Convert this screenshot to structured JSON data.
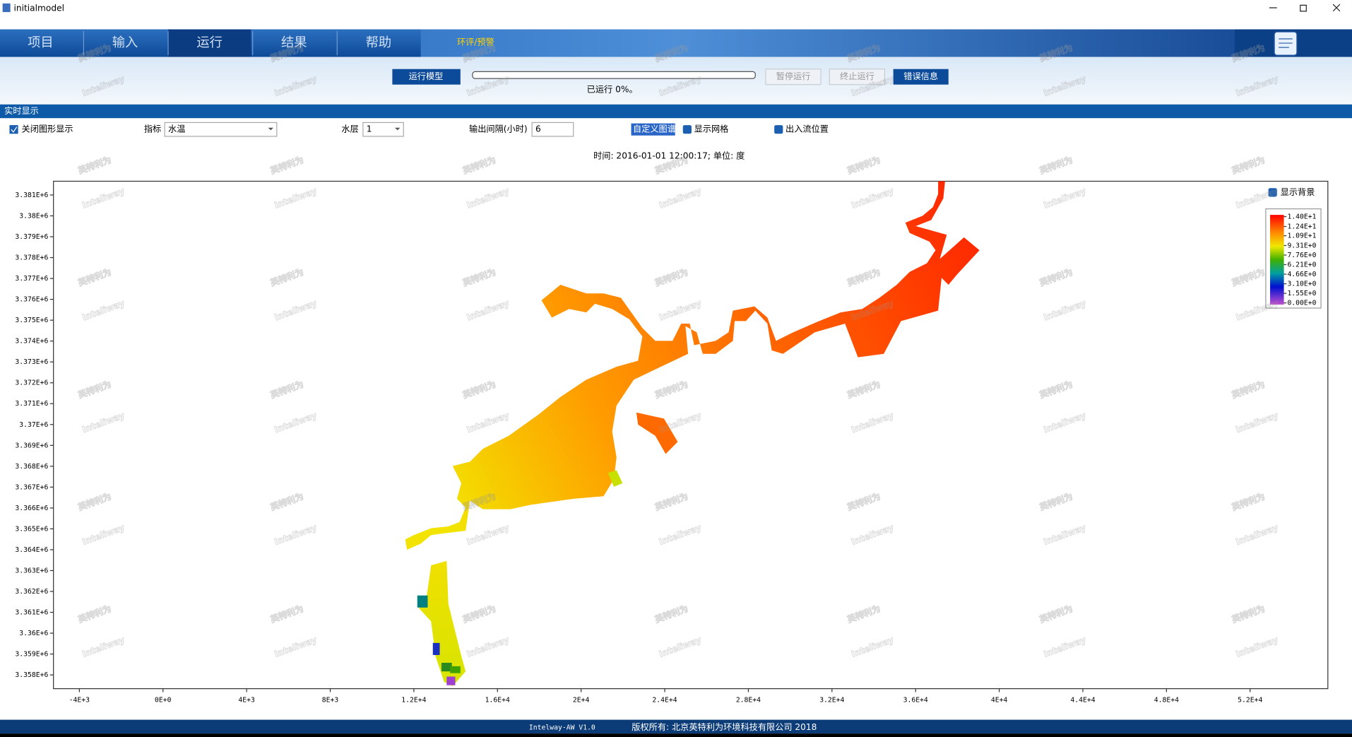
{
  "window": {
    "title": "initialmodel"
  },
  "tabs": [
    "项目",
    "输入",
    "运行",
    "结果",
    "帮助"
  ],
  "banner_link": "环评/预警",
  "toolbar": {
    "run_button": "运行模型",
    "progress_label": "已运行 0%。",
    "pause_button": "暂停运行",
    "stop_button": "终止运行",
    "error_button": "错误信息"
  },
  "section_title": "实时显示",
  "controls": {
    "close_display": "关闭图形显示",
    "indicator_label": "指标",
    "indicator_value": "水温",
    "layer_label": "水层",
    "layer_value": "1",
    "interval_label": "输出间隔(小时)",
    "interval_value": "6",
    "custom_colormap": "自定义图谱",
    "show_grid": "显示网格",
    "show_inflow": "出入流位置"
  },
  "watermark": [
    "英特利为",
    "Inteliway"
  ],
  "chart_data": {
    "type": "map",
    "title": "时间: 2016-01-01 12:00:17; 单位: 度",
    "xlim": [
      -5240,
      55720
    ],
    "xticks": [
      {
        "value": -4000,
        "label": "-4E+3"
      },
      {
        "value": 0,
        "label": "0E+0"
      },
      {
        "value": 4000,
        "label": "4E+3"
      },
      {
        "value": 8000,
        "label": "8E+3"
      },
      {
        "value": 12000,
        "label": "1.2E+4"
      },
      {
        "value": 16000,
        "label": "1.6E+4"
      },
      {
        "value": 20000,
        "label": "2E+4"
      },
      {
        "value": 24000,
        "label": "2.4E+4"
      },
      {
        "value": 28000,
        "label": "2.8E+4"
      },
      {
        "value": 32000,
        "label": "3.2E+4"
      },
      {
        "value": 36000,
        "label": "3.6E+4"
      },
      {
        "value": 40000,
        "label": "4E+4"
      },
      {
        "value": 44000,
        "label": "4.4E+4"
      },
      {
        "value": 48000,
        "label": "4.8E+4"
      },
      {
        "value": 52000,
        "label": "5.2E+4"
      }
    ],
    "ylim": [
      3357340,
      3381660
    ],
    "yticks": [
      {
        "value": 3381000,
        "label": "3.381E+6"
      },
      {
        "value": 3380000,
        "label": "3.38E+6"
      },
      {
        "value": 3379000,
        "label": "3.379E+6"
      },
      {
        "value": 3378000,
        "label": "3.378E+6"
      },
      {
        "value": 3377000,
        "label": "3.377E+6"
      },
      {
        "value": 3376000,
        "label": "3.376E+6"
      },
      {
        "value": 3375000,
        "label": "3.375E+6"
      },
      {
        "value": 3374000,
        "label": "3.374E+6"
      },
      {
        "value": 3373000,
        "label": "3.373E+6"
      },
      {
        "value": 3372000,
        "label": "3.372E+6"
      },
      {
        "value": 3371000,
        "label": "3.371E+6"
      },
      {
        "value": 3370000,
        "label": "3.37E+6"
      },
      {
        "value": 3369000,
        "label": "3.369E+6"
      },
      {
        "value": 3368000,
        "label": "3.368E+6"
      },
      {
        "value": 3367000,
        "label": "3.367E+6"
      },
      {
        "value": 3366000,
        "label": "3.366E+6"
      },
      {
        "value": 3365000,
        "label": "3.365E+6"
      },
      {
        "value": 3364000,
        "label": "3.364E+6"
      },
      {
        "value": 3363000,
        "label": "3.363E+6"
      },
      {
        "value": 3362000,
        "label": "3.362E+6"
      },
      {
        "value": 3361000,
        "label": "3.361E+6"
      },
      {
        "value": 3360000,
        "label": "3.36E+6"
      },
      {
        "value": 3359000,
        "label": "3.359E+6"
      },
      {
        "value": 3358000,
        "label": "3.358E+6"
      }
    ],
    "show_background": "显示背景",
    "clim": [
      0,
      14
    ],
    "cticks": [
      {
        "value": 14,
        "label": "1.40E+1"
      },
      {
        "value": 12.4,
        "label": "1.24E+1"
      },
      {
        "value": 10.9,
        "label": "1.09E+1"
      },
      {
        "value": 9.31,
        "label": "9.31E+0"
      },
      {
        "value": 7.76,
        "label": "7.76E+0"
      },
      {
        "value": 6.21,
        "label": "6.21E+0"
      },
      {
        "value": 4.66,
        "label": "4.66E+0"
      },
      {
        "value": 3.1,
        "label": "3.10E+0"
      },
      {
        "value": 1.55,
        "label": "1.55E+0"
      },
      {
        "value": 0,
        "label": "0.00E+0"
      }
    ]
  },
  "footer": {
    "version": "Intelway-AW  V1.0",
    "copyright": "版权所有: 北京英特利为环境科技有限公司 2018"
  }
}
